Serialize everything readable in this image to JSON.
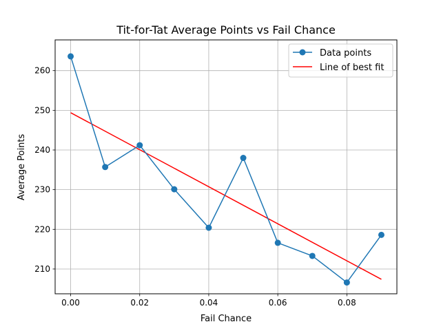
{
  "chart_data": {
    "type": "line",
    "title": "Tit-for-Tat Average Points vs Fail Chance",
    "xlabel": "Fail Chance",
    "ylabel": "Average Points",
    "xlim": [
      -0.0045,
      0.0945
    ],
    "ylim": [
      203.75,
      267.75
    ],
    "xticks": [
      0.0,
      0.02,
      0.04,
      0.06,
      0.08
    ],
    "xtick_labels": [
      "0.00",
      "0.02",
      "0.04",
      "0.06",
      "0.08"
    ],
    "yticks": [
      210,
      220,
      230,
      240,
      250,
      260
    ],
    "ytick_labels": [
      "210",
      "220",
      "230",
      "240",
      "250",
      "260"
    ],
    "grid": true,
    "legend_position": "top-right",
    "series": [
      {
        "name": "Data points",
        "style": "line-markers",
        "color": "#1f77b4",
        "x": [
          0.0,
          0.01,
          0.02,
          0.03,
          0.04,
          0.05,
          0.06,
          0.07,
          0.08,
          0.09
        ],
        "y": [
          263.6,
          235.7,
          241.2,
          230.1,
          220.4,
          238.0,
          216.6,
          213.3,
          206.6,
          218.6
        ]
      },
      {
        "name": "Line of best fit",
        "style": "line",
        "color": "#ff0000",
        "x": [
          0.0,
          0.09
        ],
        "y": [
          249.4,
          207.4
        ]
      }
    ]
  }
}
